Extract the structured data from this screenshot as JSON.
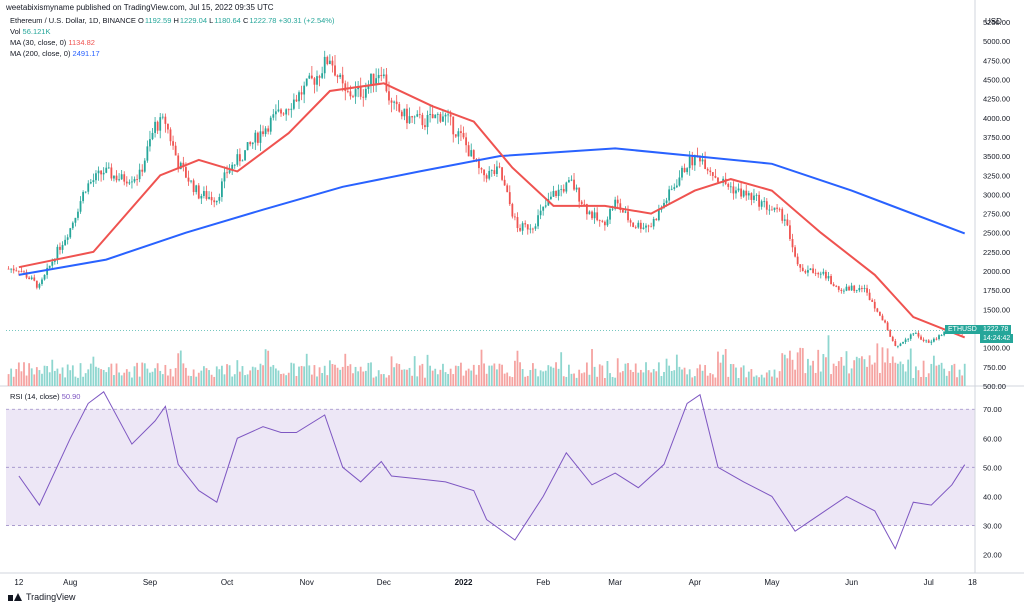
{
  "publisher": "weetabixismyname published on TradingView.com, Jul 15, 2022 09:35 UTC",
  "legend": {
    "symbol": "Ethereum / U.S. Dollar, 1D, BINANCE",
    "o_label": "O",
    "o_value": "1192.59",
    "h_label": "H",
    "h_value": "1229.04",
    "l_label": "L",
    "l_value": "1180.64",
    "c_label": "C",
    "c_value": "1222.78",
    "change": "+30.31 (+2.54%)",
    "vol_label": "Vol",
    "vol_value": "56.121K",
    "ma30_label": "MA (30, close, 0)",
    "ma30_value": "1134.82",
    "ma200_label": "MA (200, close, 0)",
    "ma200_value": "2491.17"
  },
  "rsi_legend": {
    "label": "RSI (14, close)",
    "value": "50.90"
  },
  "price_tag": {
    "symbol": "ETHUSD",
    "price": "1222.78",
    "countdown": "14:24:42"
  },
  "currency": "USD",
  "footer": {
    "brand": "TradingView"
  },
  "colors": {
    "up": "#26a69a",
    "down": "#ef5350",
    "ma30": "#ef5350",
    "ma200": "#2962ff",
    "rsi": "#7e57c2",
    "rsi_band": "#ede7f6"
  },
  "chart_data": [
    {
      "type": "candlestick",
      "title": "Ethereum / U.S. Dollar, 1D, BINANCE",
      "x_ticks": [
        "12",
        "Aug",
        "Sep",
        "Oct",
        "Nov",
        "Dec",
        "2022",
        "Feb",
        "Mar",
        "Apr",
        "May",
        "Jun",
        "Jul",
        "18"
      ],
      "y_ticks": [
        500,
        750,
        1000,
        1250,
        1500,
        1750,
        2000,
        2250,
        2500,
        2750,
        3000,
        3250,
        3500,
        3750,
        4000,
        4250,
        4500,
        4750,
        5000,
        5250
      ],
      "ylim": [
        500,
        5250
      ],
      "close_approx": [
        {
          "date": "2021-07-12",
          "close": 2030
        },
        {
          "date": "2021-07-20",
          "close": 1790
        },
        {
          "date": "2021-07-26",
          "close": 2200
        },
        {
          "date": "2021-08-01",
          "close": 2560
        },
        {
          "date": "2021-08-07",
          "close": 3100
        },
        {
          "date": "2021-08-14",
          "close": 3300
        },
        {
          "date": "2021-08-21",
          "close": 3200
        },
        {
          "date": "2021-08-28",
          "close": 3250
        },
        {
          "date": "2021-09-03",
          "close": 3900
        },
        {
          "date": "2021-09-07",
          "close": 3950
        },
        {
          "date": "2021-09-12",
          "close": 3400
        },
        {
          "date": "2021-09-20",
          "close": 3000
        },
        {
          "date": "2021-09-27",
          "close": 2950
        },
        {
          "date": "2021-10-01",
          "close": 3300
        },
        {
          "date": "2021-10-08",
          "close": 3550
        },
        {
          "date": "2021-10-15",
          "close": 3850
        },
        {
          "date": "2021-10-21",
          "close": 4050
        },
        {
          "date": "2021-10-29",
          "close": 4300
        },
        {
          "date": "2021-11-05",
          "close": 4550
        },
        {
          "date": "2021-11-10",
          "close": 4800
        },
        {
          "date": "2021-11-16",
          "close": 4300
        },
        {
          "date": "2021-11-23",
          "close": 4350
        },
        {
          "date": "2021-11-30",
          "close": 4650
        },
        {
          "date": "2021-12-04",
          "close": 4150
        },
        {
          "date": "2021-12-10",
          "close": 4000
        },
        {
          "date": "2021-12-17",
          "close": 3950
        },
        {
          "date": "2021-12-24",
          "close": 4050
        },
        {
          "date": "2022-01-01",
          "close": 3700
        },
        {
          "date": "2022-01-08",
          "close": 3250
        },
        {
          "date": "2022-01-15",
          "close": 3300
        },
        {
          "date": "2022-01-22",
          "close": 2550
        },
        {
          "date": "2022-01-28",
          "close": 2600
        },
        {
          "date": "2022-02-05",
          "close": 3000
        },
        {
          "date": "2022-02-12",
          "close": 3150
        },
        {
          "date": "2022-02-18",
          "close": 2800
        },
        {
          "date": "2022-02-24",
          "close": 2600
        },
        {
          "date": "2022-03-01",
          "close": 2900
        },
        {
          "date": "2022-03-08",
          "close": 2600
        },
        {
          "date": "2022-03-15",
          "close": 2600
        },
        {
          "date": "2022-03-22",
          "close": 3000
        },
        {
          "date": "2022-03-29",
          "close": 3400
        },
        {
          "date": "2022-04-03",
          "close": 3500
        },
        {
          "date": "2022-04-10",
          "close": 3200
        },
        {
          "date": "2022-04-17",
          "close": 3050
        },
        {
          "date": "2022-04-24",
          "close": 2950
        },
        {
          "date": "2022-05-01",
          "close": 2800
        },
        {
          "date": "2022-05-06",
          "close": 2700
        },
        {
          "date": "2022-05-12",
          "close": 2000
        },
        {
          "date": "2022-05-20",
          "close": 2000
        },
        {
          "date": "2022-05-27",
          "close": 1750
        },
        {
          "date": "2022-06-05",
          "close": 1800
        },
        {
          "date": "2022-06-12",
          "close": 1450
        },
        {
          "date": "2022-06-18",
          "close": 1000
        },
        {
          "date": "2022-06-25",
          "close": 1200
        },
        {
          "date": "2022-07-01",
          "close": 1050
        },
        {
          "date": "2022-07-08",
          "close": 1230
        },
        {
          "date": "2022-07-15",
          "close": 1222.78
        }
      ],
      "ma30_approx": [
        {
          "date": "2021-07-12",
          "value": 2050
        },
        {
          "date": "2021-08-10",
          "value": 2250
        },
        {
          "date": "2021-09-05",
          "value": 3250
        },
        {
          "date": "2021-09-20",
          "value": 3450
        },
        {
          "date": "2021-10-05",
          "value": 3300
        },
        {
          "date": "2021-10-25",
          "value": 3800
        },
        {
          "date": "2021-11-10",
          "value": 4350
        },
        {
          "date": "2021-12-01",
          "value": 4450
        },
        {
          "date": "2021-12-20",
          "value": 4150
        },
        {
          "date": "2022-01-05",
          "value": 3950
        },
        {
          "date": "2022-01-20",
          "value": 3350
        },
        {
          "date": "2022-02-05",
          "value": 2850
        },
        {
          "date": "2022-02-25",
          "value": 2850
        },
        {
          "date": "2022-03-15",
          "value": 2750
        },
        {
          "date": "2022-04-01",
          "value": 3050
        },
        {
          "date": "2022-04-15",
          "value": 3200
        },
        {
          "date": "2022-05-01",
          "value": 3050
        },
        {
          "date": "2022-05-20",
          "value": 2500
        },
        {
          "date": "2022-06-10",
          "value": 1950
        },
        {
          "date": "2022-06-25",
          "value": 1400
        },
        {
          "date": "2022-07-15",
          "value": 1134.82
        }
      ],
      "ma200_approx": [
        {
          "date": "2021-07-12",
          "value": 1950
        },
        {
          "date": "2021-08-15",
          "value": 2150
        },
        {
          "date": "2021-09-15",
          "value": 2500
        },
        {
          "date": "2021-10-15",
          "value": 2800
        },
        {
          "date": "2021-11-15",
          "value": 3100
        },
        {
          "date": "2021-12-15",
          "value": 3300
        },
        {
          "date": "2022-01-15",
          "value": 3500
        },
        {
          "date": "2022-02-15",
          "value": 3570
        },
        {
          "date": "2022-03-01",
          "value": 3600
        },
        {
          "date": "2022-04-01",
          "value": 3500
        },
        {
          "date": "2022-05-01",
          "value": 3400
        },
        {
          "date": "2022-06-01",
          "value": 3050
        },
        {
          "date": "2022-07-15",
          "value": 2491.17
        }
      ],
      "volume_ylim": [
        0,
        100
      ]
    },
    {
      "type": "line",
      "title": "RSI (14, close)",
      "y_ticks": [
        20,
        30,
        40,
        50,
        60,
        70
      ],
      "ylim": [
        15,
        78
      ],
      "bands": [
        30,
        50,
        70
      ],
      "rsi_approx": [
        {
          "date": "2021-07-12",
          "value": 47
        },
        {
          "date": "2021-07-20",
          "value": 37
        },
        {
          "date": "2021-08-01",
          "value": 60
        },
        {
          "date": "2021-08-08",
          "value": 72
        },
        {
          "date": "2021-08-14",
          "value": 76
        },
        {
          "date": "2021-08-25",
          "value": 58
        },
        {
          "date": "2021-09-03",
          "value": 66
        },
        {
          "date": "2021-09-07",
          "value": 71
        },
        {
          "date": "2021-09-12",
          "value": 51
        },
        {
          "date": "2021-09-20",
          "value": 42
        },
        {
          "date": "2021-09-27",
          "value": 38
        },
        {
          "date": "2021-10-05",
          "value": 60
        },
        {
          "date": "2021-10-15",
          "value": 64
        },
        {
          "date": "2021-10-22",
          "value": 62
        },
        {
          "date": "2021-10-28",
          "value": 62
        },
        {
          "date": "2021-11-08",
          "value": 68
        },
        {
          "date": "2021-11-15",
          "value": 50
        },
        {
          "date": "2021-11-22",
          "value": 45
        },
        {
          "date": "2021-11-30",
          "value": 52
        },
        {
          "date": "2021-12-04",
          "value": 47
        },
        {
          "date": "2021-12-15",
          "value": 46
        },
        {
          "date": "2021-12-25",
          "value": 45
        },
        {
          "date": "2022-01-05",
          "value": 42
        },
        {
          "date": "2022-01-10",
          "value": 32
        },
        {
          "date": "2022-01-21",
          "value": 25
        },
        {
          "date": "2022-02-01",
          "value": 40
        },
        {
          "date": "2022-02-10",
          "value": 55
        },
        {
          "date": "2022-02-20",
          "value": 44
        },
        {
          "date": "2022-03-01",
          "value": 48
        },
        {
          "date": "2022-03-10",
          "value": 43
        },
        {
          "date": "2022-03-20",
          "value": 51
        },
        {
          "date": "2022-03-29",
          "value": 72
        },
        {
          "date": "2022-04-03",
          "value": 75
        },
        {
          "date": "2022-04-10",
          "value": 50
        },
        {
          "date": "2022-04-20",
          "value": 45
        },
        {
          "date": "2022-05-01",
          "value": 40
        },
        {
          "date": "2022-05-10",
          "value": 28
        },
        {
          "date": "2022-05-20",
          "value": 34
        },
        {
          "date": "2022-05-30",
          "value": 40
        },
        {
          "date": "2022-06-10",
          "value": 35
        },
        {
          "date": "2022-06-18",
          "value": 22
        },
        {
          "date": "2022-06-25",
          "value": 38
        },
        {
          "date": "2022-07-02",
          "value": 37
        },
        {
          "date": "2022-07-10",
          "value": 44
        },
        {
          "date": "2022-07-15",
          "value": 50.9
        }
      ]
    }
  ]
}
